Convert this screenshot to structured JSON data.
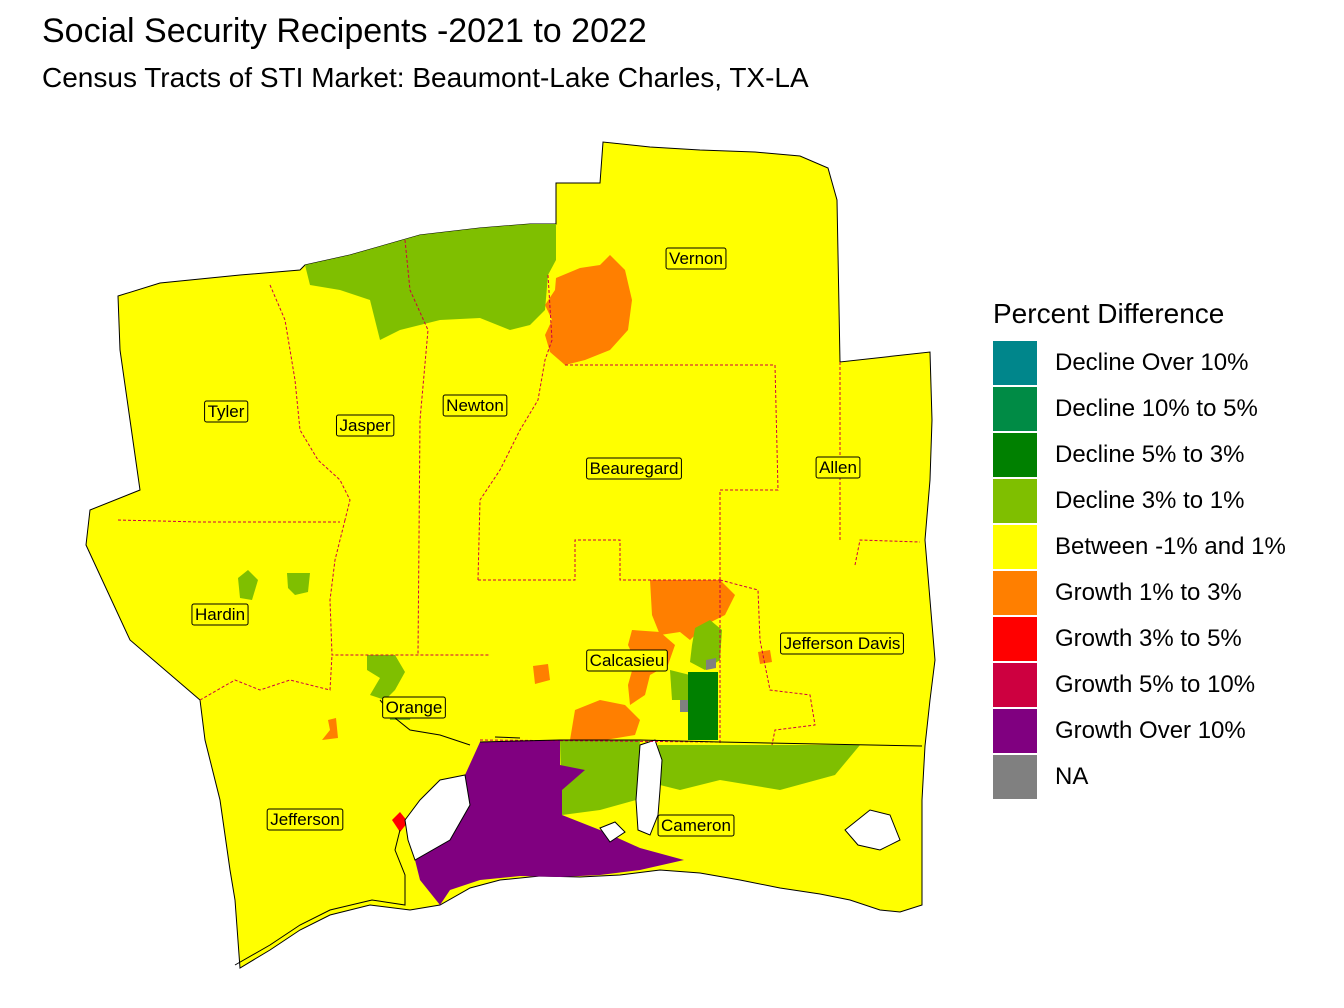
{
  "title": "Social Security Recipents -2021 to 2022",
  "subtitle": "Census Tracts of STI Market: Beaumont-Lake Charles, TX-LA",
  "legend": {
    "title": "Percent Difference",
    "items": [
      {
        "label": "Decline Over 10%",
        "color": "#00868B"
      },
      {
        "label": "Decline 10% to 5%",
        "color": "#008B45"
      },
      {
        "label": "Decline 5% to 3%",
        "color": "#008000"
      },
      {
        "label": "Decline 3% to 1%",
        "color": "#7FBF00"
      },
      {
        "label": "Between -1% and 1%",
        "color": "#FFFF00"
      },
      {
        "label": "Growth 1% to 3%",
        "color": "#FF7F00"
      },
      {
        "label": "Growth 3% to 5%",
        "color": "#FF0000"
      },
      {
        "label": "Growth 5% to 10%",
        "color": "#CD0040"
      },
      {
        "label": "Growth Over 10%",
        "color": "#800080"
      },
      {
        "label": "NA",
        "color": "#808080"
      }
    ]
  },
  "counties": [
    {
      "name": "Vernon"
    },
    {
      "name": "Tyler"
    },
    {
      "name": "Jasper"
    },
    {
      "name": "Newton"
    },
    {
      "name": "Beauregard"
    },
    {
      "name": "Allen"
    },
    {
      "name": "Hardin"
    },
    {
      "name": "Calcasieu"
    },
    {
      "name": "Jefferson Davis"
    },
    {
      "name": "Orange"
    },
    {
      "name": "Jefferson"
    },
    {
      "name": "Cameron"
    }
  ]
}
